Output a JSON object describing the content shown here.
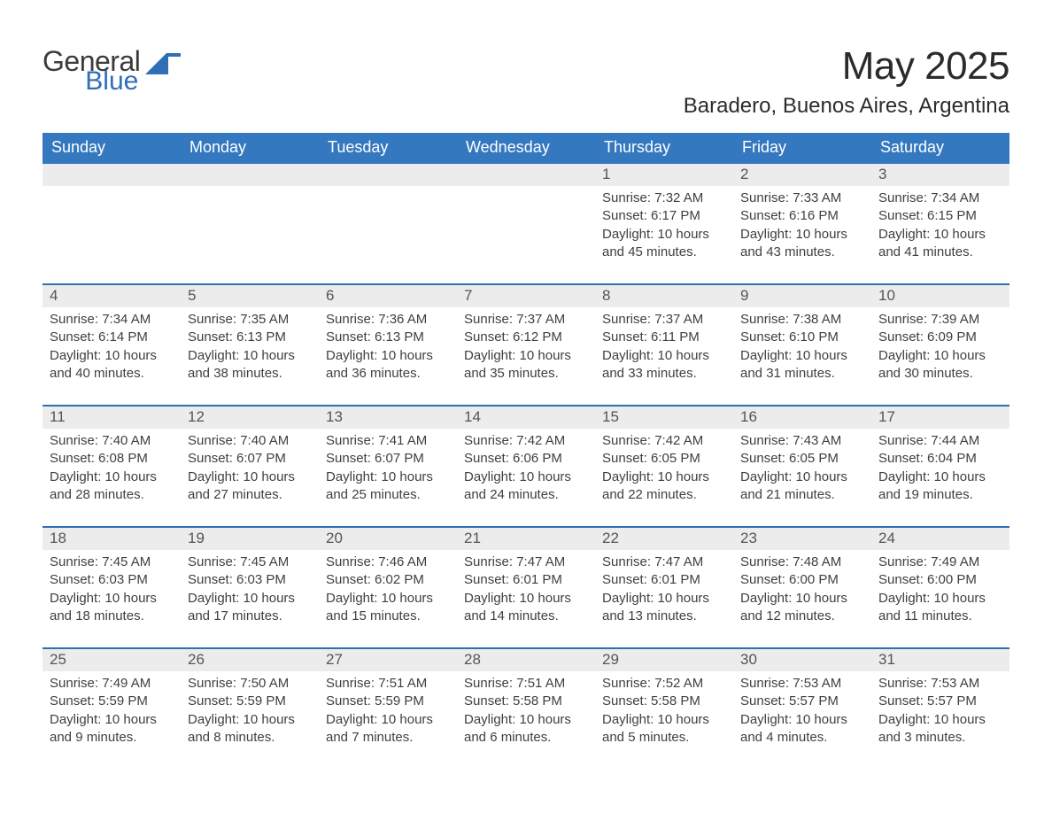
{
  "colors": {
    "brand_blue": "#2f6fb4",
    "header_blue": "#3478c0",
    "daynum_bg": "#ececec",
    "text": "#333333",
    "cell_text": "#404040",
    "daynum_text": "#555555",
    "header_text": "#ffffff",
    "page_bg": "#ffffff"
  },
  "typography": {
    "month_title_fontsize": 44,
    "location_fontsize": 24,
    "dow_fontsize": 18,
    "daynum_fontsize": 17,
    "cell_fontsize": 15,
    "font_family": "Segoe UI / Arial"
  },
  "logo": {
    "line1": "General",
    "line2": "Blue"
  },
  "title": "May 2025",
  "location": "Baradero, Buenos Aires, Argentina",
  "days_of_week": [
    "Sunday",
    "Monday",
    "Tuesday",
    "Wednesday",
    "Thursday",
    "Friday",
    "Saturday"
  ],
  "calendar": {
    "type": "table",
    "columns": 7,
    "rows": 5,
    "labels": {
      "sunrise": "Sunrise:",
      "sunset": "Sunset:",
      "daylight": "Daylight:"
    },
    "weeks": [
      [
        null,
        null,
        null,
        null,
        {
          "n": "1",
          "sunrise": "7:32 AM",
          "sunset": "6:17 PM",
          "daylight": "10 hours and 45 minutes."
        },
        {
          "n": "2",
          "sunrise": "7:33 AM",
          "sunset": "6:16 PM",
          "daylight": "10 hours and 43 minutes."
        },
        {
          "n": "3",
          "sunrise": "7:34 AM",
          "sunset": "6:15 PM",
          "daylight": "10 hours and 41 minutes."
        }
      ],
      [
        {
          "n": "4",
          "sunrise": "7:34 AM",
          "sunset": "6:14 PM",
          "daylight": "10 hours and 40 minutes."
        },
        {
          "n": "5",
          "sunrise": "7:35 AM",
          "sunset": "6:13 PM",
          "daylight": "10 hours and 38 minutes."
        },
        {
          "n": "6",
          "sunrise": "7:36 AM",
          "sunset": "6:13 PM",
          "daylight": "10 hours and 36 minutes."
        },
        {
          "n": "7",
          "sunrise": "7:37 AM",
          "sunset": "6:12 PM",
          "daylight": "10 hours and 35 minutes."
        },
        {
          "n": "8",
          "sunrise": "7:37 AM",
          "sunset": "6:11 PM",
          "daylight": "10 hours and 33 minutes."
        },
        {
          "n": "9",
          "sunrise": "7:38 AM",
          "sunset": "6:10 PM",
          "daylight": "10 hours and 31 minutes."
        },
        {
          "n": "10",
          "sunrise": "7:39 AM",
          "sunset": "6:09 PM",
          "daylight": "10 hours and 30 minutes."
        }
      ],
      [
        {
          "n": "11",
          "sunrise": "7:40 AM",
          "sunset": "6:08 PM",
          "daylight": "10 hours and 28 minutes."
        },
        {
          "n": "12",
          "sunrise": "7:40 AM",
          "sunset": "6:07 PM",
          "daylight": "10 hours and 27 minutes."
        },
        {
          "n": "13",
          "sunrise": "7:41 AM",
          "sunset": "6:07 PM",
          "daylight": "10 hours and 25 minutes."
        },
        {
          "n": "14",
          "sunrise": "7:42 AM",
          "sunset": "6:06 PM",
          "daylight": "10 hours and 24 minutes."
        },
        {
          "n": "15",
          "sunrise": "7:42 AM",
          "sunset": "6:05 PM",
          "daylight": "10 hours and 22 minutes."
        },
        {
          "n": "16",
          "sunrise": "7:43 AM",
          "sunset": "6:05 PM",
          "daylight": "10 hours and 21 minutes."
        },
        {
          "n": "17",
          "sunrise": "7:44 AM",
          "sunset": "6:04 PM",
          "daylight": "10 hours and 19 minutes."
        }
      ],
      [
        {
          "n": "18",
          "sunrise": "7:45 AM",
          "sunset": "6:03 PM",
          "daylight": "10 hours and 18 minutes."
        },
        {
          "n": "19",
          "sunrise": "7:45 AM",
          "sunset": "6:03 PM",
          "daylight": "10 hours and 17 minutes."
        },
        {
          "n": "20",
          "sunrise": "7:46 AM",
          "sunset": "6:02 PM",
          "daylight": "10 hours and 15 minutes."
        },
        {
          "n": "21",
          "sunrise": "7:47 AM",
          "sunset": "6:01 PM",
          "daylight": "10 hours and 14 minutes."
        },
        {
          "n": "22",
          "sunrise": "7:47 AM",
          "sunset": "6:01 PM",
          "daylight": "10 hours and 13 minutes."
        },
        {
          "n": "23",
          "sunrise": "7:48 AM",
          "sunset": "6:00 PM",
          "daylight": "10 hours and 12 minutes."
        },
        {
          "n": "24",
          "sunrise": "7:49 AM",
          "sunset": "6:00 PM",
          "daylight": "10 hours and 11 minutes."
        }
      ],
      [
        {
          "n": "25",
          "sunrise": "7:49 AM",
          "sunset": "5:59 PM",
          "daylight": "10 hours and 9 minutes."
        },
        {
          "n": "26",
          "sunrise": "7:50 AM",
          "sunset": "5:59 PM",
          "daylight": "10 hours and 8 minutes."
        },
        {
          "n": "27",
          "sunrise": "7:51 AM",
          "sunset": "5:59 PM",
          "daylight": "10 hours and 7 minutes."
        },
        {
          "n": "28",
          "sunrise": "7:51 AM",
          "sunset": "5:58 PM",
          "daylight": "10 hours and 6 minutes."
        },
        {
          "n": "29",
          "sunrise": "7:52 AM",
          "sunset": "5:58 PM",
          "daylight": "10 hours and 5 minutes."
        },
        {
          "n": "30",
          "sunrise": "7:53 AM",
          "sunset": "5:57 PM",
          "daylight": "10 hours and 4 minutes."
        },
        {
          "n": "31",
          "sunrise": "7:53 AM",
          "sunset": "5:57 PM",
          "daylight": "10 hours and 3 minutes."
        }
      ]
    ]
  }
}
